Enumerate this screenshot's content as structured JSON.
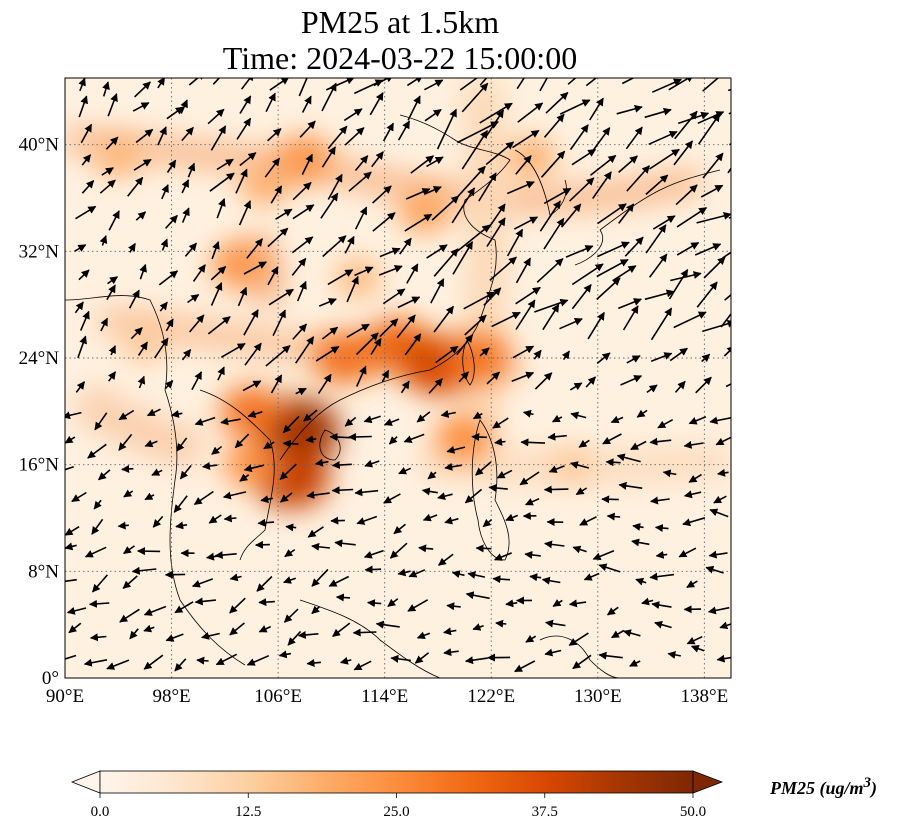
{
  "title": {
    "line1": "PM25 at 1.5km",
    "line2": "Time: 2024-03-22 15:00:00"
  },
  "map": {
    "lon_range": [
      90,
      140
    ],
    "lat_range": [
      0,
      45
    ],
    "lon_ticks": [
      "90°E",
      "98°E",
      "106°E",
      "114°E",
      "122°E",
      "130°E",
      "138°E"
    ],
    "lat_ticks": [
      "0°",
      "8°N",
      "16°N",
      "24°N",
      "32°N",
      "40°N"
    ],
    "gridlines": "dotted"
  },
  "colorbar": {
    "label": "PM25 (ug/m",
    "label_sup": "3",
    "label_close": ")",
    "ticks": [
      "0.0",
      "12.5",
      "25.0",
      "37.5",
      "50.0"
    ],
    "min": 0,
    "max": 50,
    "extend": "both",
    "colormap": [
      "#fff5eb",
      "#fee6ce",
      "#fdd0a2",
      "#fdae6b",
      "#fd8d3c",
      "#f16913",
      "#d94801",
      "#a63603",
      "#7f2704"
    ]
  },
  "pollution_hotspots": [
    {
      "lon": 107.5,
      "lat": 18.5,
      "value": 45
    },
    {
      "lon": 107,
      "lat": 15,
      "value": 40
    },
    {
      "lon": 111,
      "lat": 24,
      "value": 30
    },
    {
      "lon": 115,
      "lat": 25,
      "value": 32
    },
    {
      "lon": 118,
      "lat": 23.5,
      "value": 38
    },
    {
      "lon": 121,
      "lat": 24,
      "value": 30
    },
    {
      "lon": 120,
      "lat": 18,
      "value": 26
    },
    {
      "lon": 104,
      "lat": 20,
      "value": 30
    },
    {
      "lon": 104,
      "lat": 16,
      "value": 25
    },
    {
      "lon": 103,
      "lat": 31,
      "value": 24
    },
    {
      "lon": 108,
      "lat": 39,
      "value": 24
    },
    {
      "lon": 105,
      "lat": 37,
      "value": 20
    },
    {
      "lon": 117,
      "lat": 35,
      "value": 22
    },
    {
      "lon": 125,
      "lat": 39,
      "value": 20
    },
    {
      "lon": 94,
      "lat": 39,
      "value": 18
    },
    {
      "lon": 96,
      "lat": 25,
      "value": 15
    },
    {
      "lon": 128,
      "lat": 16,
      "value": 14
    },
    {
      "lon": 112,
      "lat": 30,
      "value": 18
    }
  ]
}
